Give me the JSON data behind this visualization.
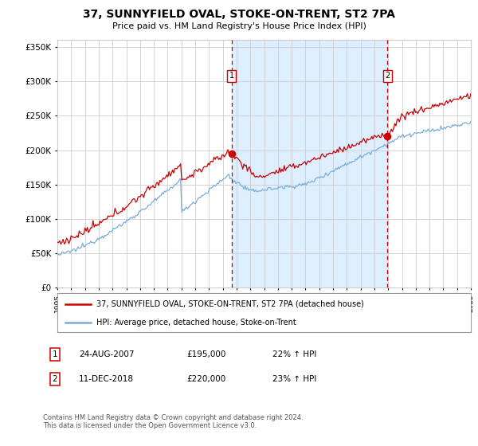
{
  "title": "37, SUNNYFIELD OVAL, STOKE-ON-TRENT, ST2 7PA",
  "subtitle": "Price paid vs. HM Land Registry's House Price Index (HPI)",
  "legend_line1": "37, SUNNYFIELD OVAL, STOKE-ON-TRENT, ST2 7PA (detached house)",
  "legend_line2": "HPI: Average price, detached house, Stoke-on-Trent",
  "transaction1_date": "24-AUG-2007",
  "transaction1_price": "£195,000",
  "transaction1_hpi": "22% ↑ HPI",
  "transaction2_date": "11-DEC-2018",
  "transaction2_price": "£220,000",
  "transaction2_hpi": "23% ↑ HPI",
  "footnote": "Contains HM Land Registry data © Crown copyright and database right 2024.\nThis data is licensed under the Open Government Licence v3.0.",
  "red_color": "#cc0000",
  "blue_color": "#7aacda",
  "shaded_region_color": "#ddeeff",
  "background_color": "#ffffff",
  "grid_color": "#cccccc",
  "dashed_line_color": "#cc0000",
  "ylim": [
    0,
    360000
  ],
  "yticks": [
    0,
    50000,
    100000,
    150000,
    200000,
    250000,
    300000,
    350000
  ],
  "year_start": 1995,
  "year_end": 2025,
  "transaction1_year": 2007.65,
  "transaction1_value": 195000,
  "transaction2_year": 2018.95,
  "transaction2_value": 220000
}
